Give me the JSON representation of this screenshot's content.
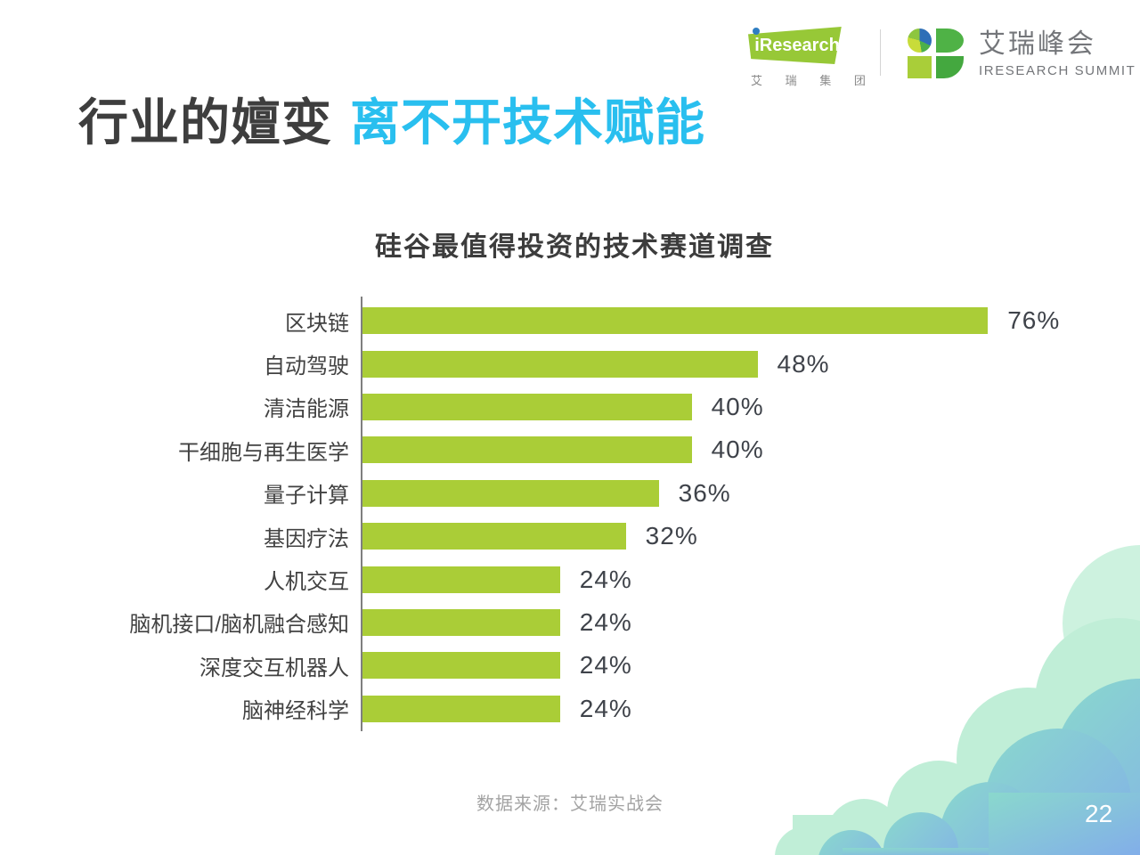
{
  "header": {
    "iresearch": {
      "brand": "iResearch",
      "subtext": "艾 瑞 集 团"
    },
    "summit": {
      "name_cn": "艾瑞峰会",
      "name_en": "IRESEARCH SUMMIT"
    }
  },
  "title": {
    "part_dark": "行业的嬗变",
    "part_accent": "离不开技术赋能"
  },
  "chart_data": {
    "type": "bar",
    "orientation": "horizontal",
    "title": "硅谷最值得投资的技术赛道调查",
    "categories": [
      "区块链",
      "自动驾驶",
      "清洁能源",
      "干细胞与再生医学",
      "量子计算",
      "基因疗法",
      "人机交互",
      "脑机接口/脑机融合感知",
      "深度交互机器人",
      "脑神经科学"
    ],
    "values": [
      76,
      48,
      40,
      40,
      36,
      32,
      24,
      24,
      24,
      24
    ],
    "value_labels": [
      "76%",
      "48%",
      "40%",
      "40%",
      "36%",
      "32%",
      "24%",
      "24%",
      "24%",
      "24%"
    ],
    "xlim": [
      0,
      100
    ],
    "grid": false,
    "legend": "none",
    "bar_color": "#aacd37",
    "axis_color": "#7f7f7f"
  },
  "footer": {
    "source": "数据来源：艾瑞实战会",
    "page_number": "22"
  },
  "colors": {
    "accent_cyan": "#29bfef",
    "title_dark": "#3e3e3e",
    "bar_green": "#aacd37",
    "logo_green": "#97c837",
    "cloud_mint": "#c0eed7",
    "cloud_blue_start": "#8ad8cd",
    "cloud_blue_end": "#82aee9"
  }
}
